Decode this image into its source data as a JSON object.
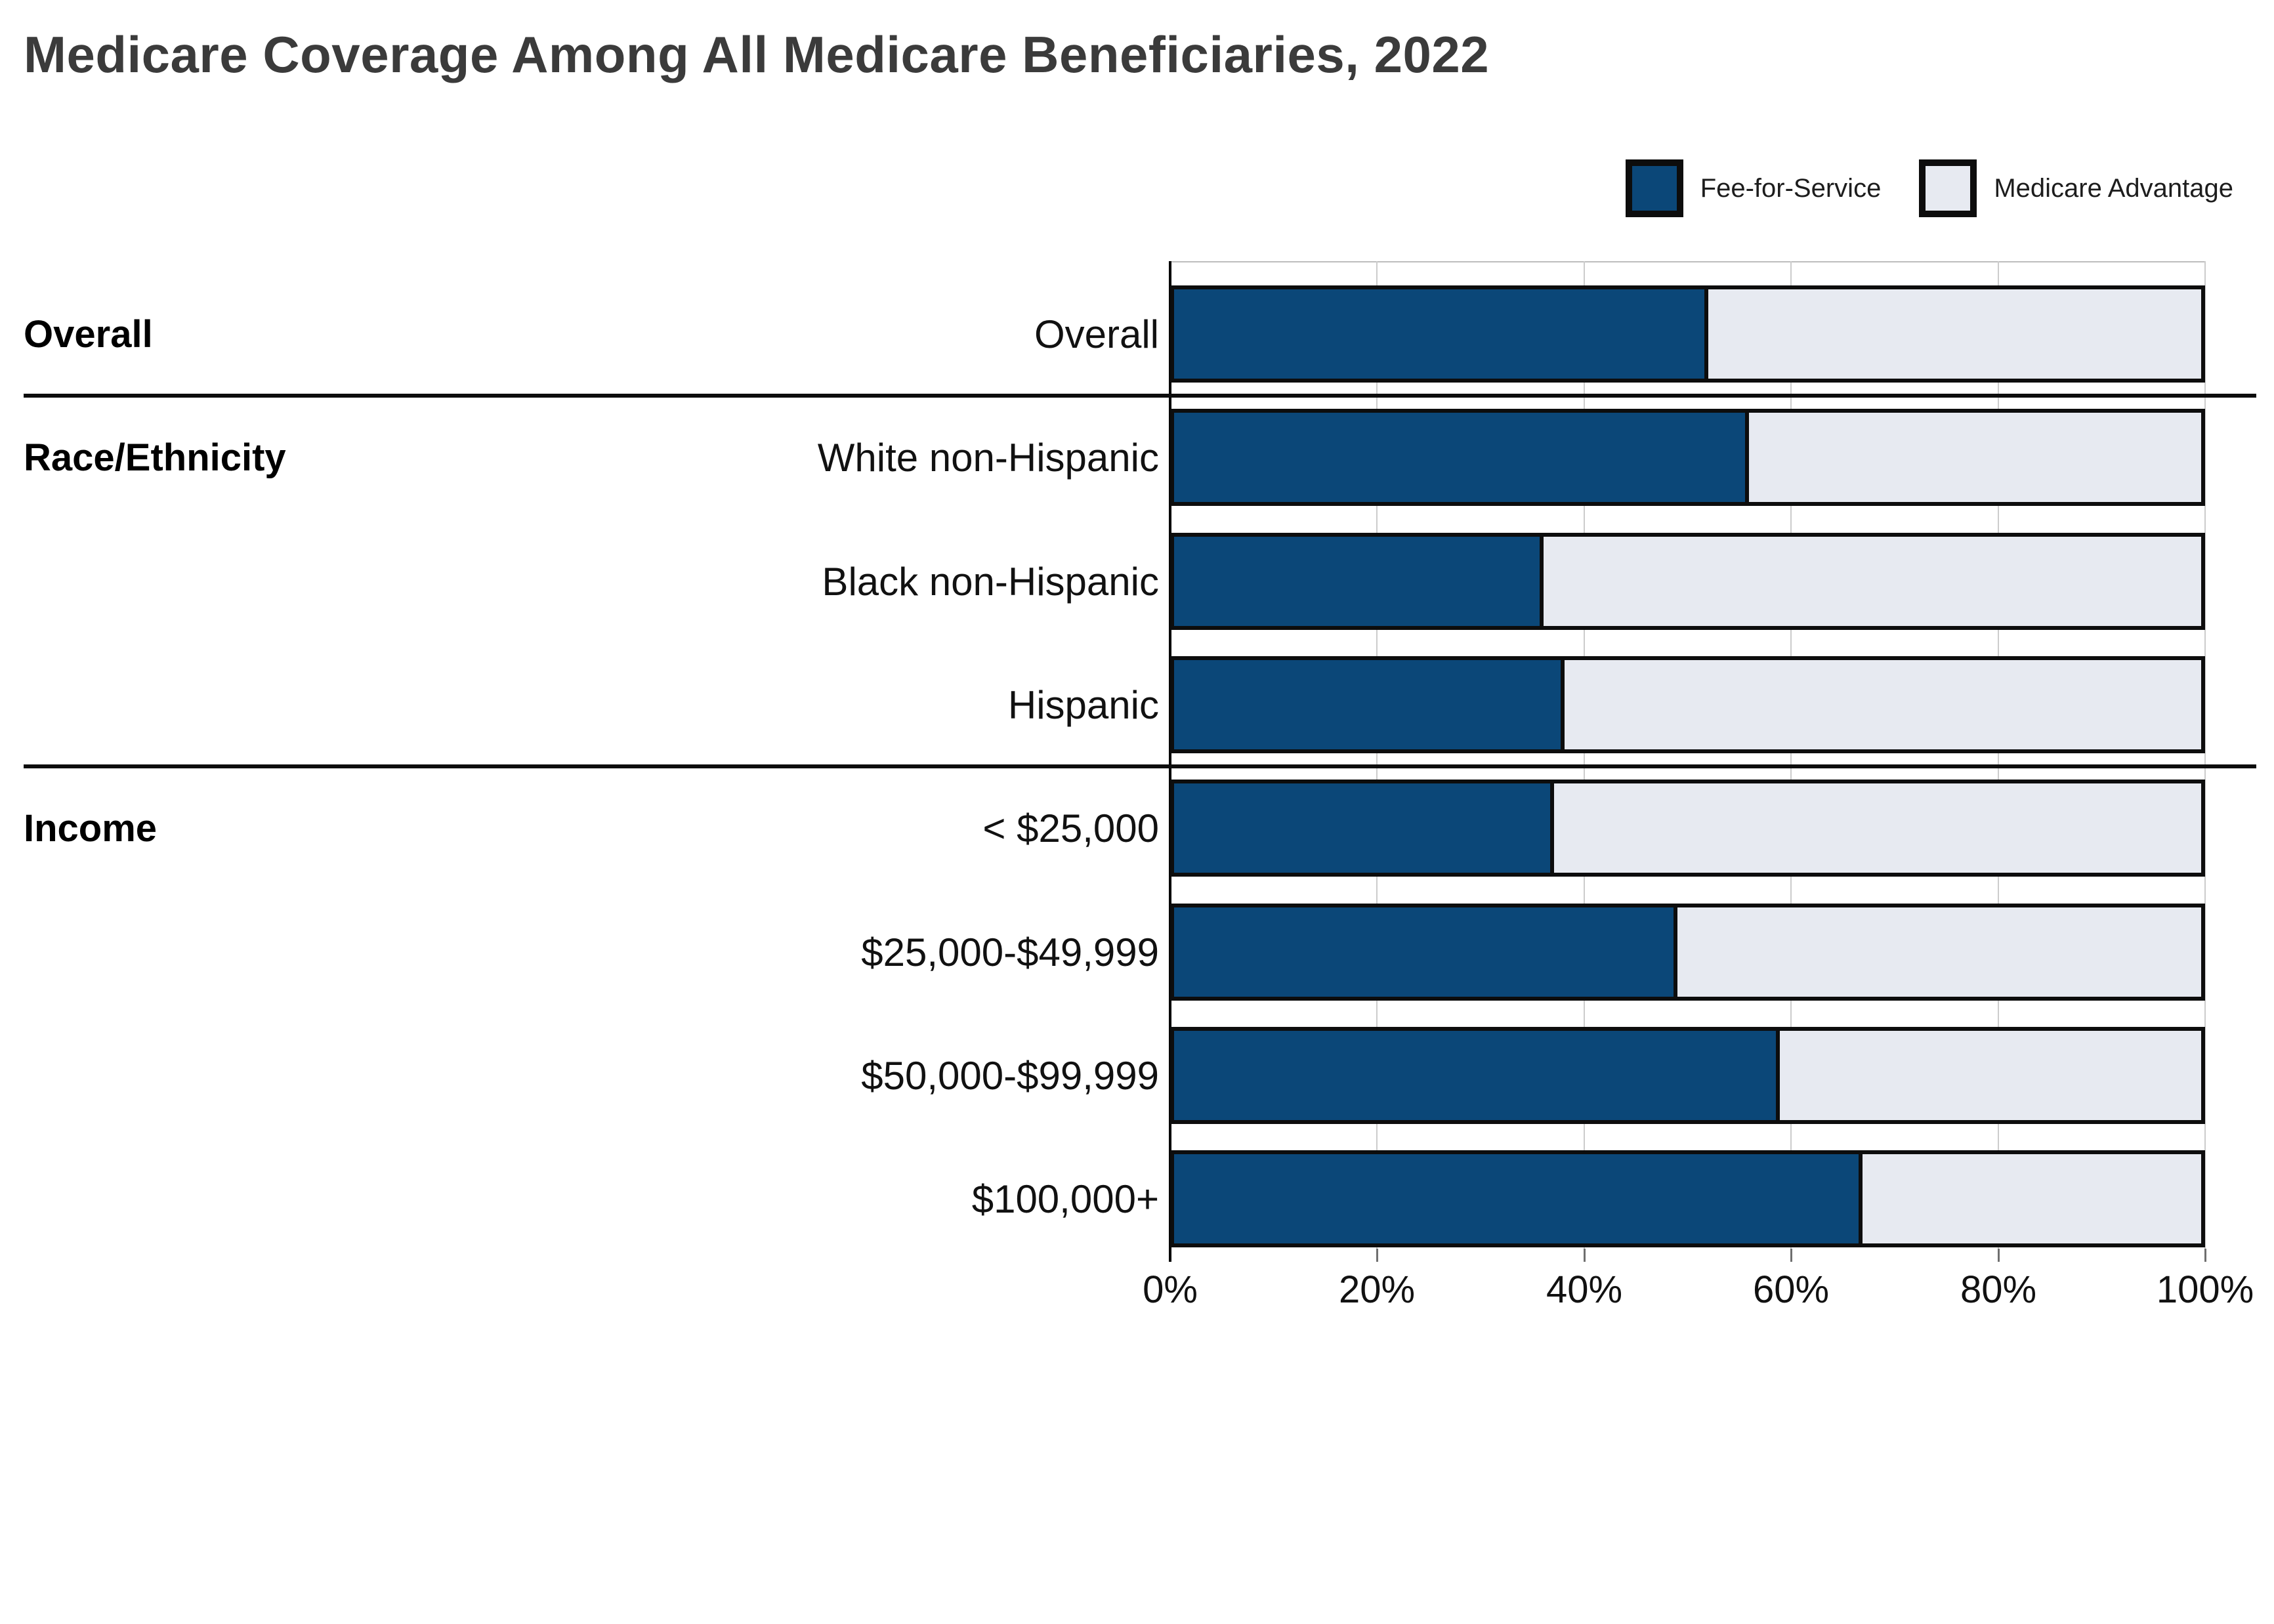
{
  "title": "Medicare Coverage Among All Medicare Beneficiaries, 2022",
  "legend": {
    "items": [
      {
        "label": "Fee-for-Service",
        "color": "#0b4778"
      },
      {
        "label": "Medicare Advantage",
        "color": "#e7eaf1"
      }
    ]
  },
  "colors": {
    "fee_for_service": "#0b4778",
    "medicare_advantage": "#e7eaf1",
    "bar_border": "#0d0d0d",
    "title_text": "#3b3b3b",
    "gridline": "#cccccc",
    "plot_top_border": "#bdbdbd",
    "axis_line": "#000000",
    "tick": "#6f6f6f",
    "separator": "#0d0d0d"
  },
  "chart_data": {
    "type": "bar",
    "orientation": "horizontal",
    "stacked": true,
    "title": "Medicare Coverage Among All Medicare Beneficiaries, 2022",
    "xlabel": "",
    "ylabel": "",
    "xlim": [
      0,
      100
    ],
    "x_tick_values": [
      0,
      20,
      40,
      60,
      80,
      100
    ],
    "x_tick_labels": [
      "0%",
      "20%",
      "40%",
      "60%",
      "80%",
      "100%"
    ],
    "grid": true,
    "legend_position": "top-right",
    "groups": [
      {
        "header": "Overall",
        "categories": [
          "Overall"
        ]
      },
      {
        "header": "Race/Ethnicity",
        "categories": [
          "White non-Hispanic",
          "Black non-Hispanic",
          "Hispanic"
        ]
      },
      {
        "header": "Income",
        "categories": [
          "< $25,000",
          "$25,000-$49,999",
          "$50,000-$99,999",
          "$100,000+"
        ]
      }
    ],
    "categories": [
      "Overall",
      "White non-Hispanic",
      "Black non-Hispanic",
      "Hispanic",
      "< $25,000",
      "$25,000-$49,999",
      "$50,000-$99,999",
      "$100,000+"
    ],
    "series": [
      {
        "name": "Fee-for-Service",
        "values": [
          52,
          56,
          36,
          38,
          37,
          49,
          59,
          67
        ]
      },
      {
        "name": "Medicare Advantage",
        "values": [
          48,
          44,
          64,
          62,
          63,
          51,
          41,
          33
        ]
      }
    ]
  }
}
